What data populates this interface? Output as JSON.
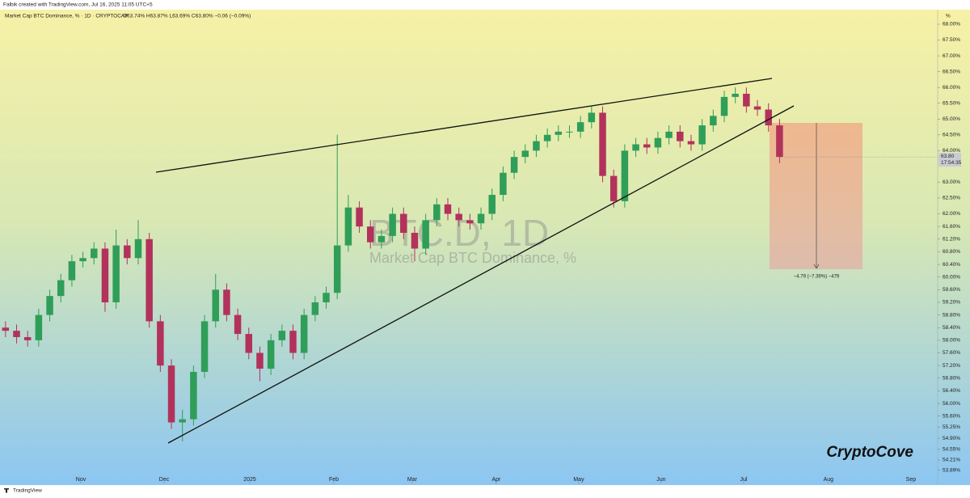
{
  "chart_data": {
    "type": "candlestick",
    "attribution": "Falbik created with TradingView.com, Jul 16, 2025 11:05 UTC+5",
    "title": "Market Cap BTC Dominance, % · 1D · CRYPTOCAP",
    "legend_values": "O63.74% H63.87% L63.69% C63.80% −0.06 (−0.09%)",
    "watermark": "BTC.D, 1D",
    "watermark_subtitle": "Market Cap BTC Dominance, %",
    "brand": "CryptoCove",
    "footer": "TradingView",
    "axis_unit": "%",
    "measure_label": "−4.79 (−7.39%) −479",
    "last_price_label": "63.80",
    "countdown": "17:54:35",
    "up_color": "#2f9e58",
    "down_color": "#b2325c",
    "open": [
      58.4,
      58.3,
      58.1,
      58.0,
      58.8,
      59.4,
      59.9,
      60.5,
      60.6,
      60.9,
      59.2,
      61.0,
      60.6,
      61.2,
      58.6,
      57.2,
      55.4,
      55.5,
      57.0,
      58.6,
      59.6,
      58.8,
      58.2,
      57.6,
      57.1,
      58.0,
      58.3,
      57.6,
      58.8,
      59.2,
      59.5,
      61.0,
      62.2,
      61.6,
      61.1,
      61.3,
      62.0,
      61.4,
      60.9,
      61.8,
      62.3,
      62.0,
      61.8,
      61.7,
      62.0,
      62.6,
      63.3,
      63.8,
      64.0,
      64.3,
      64.5,
      64.6,
      64.6,
      64.9,
      65.2,
      63.2,
      62.4,
      64.0,
      64.2,
      64.1,
      64.4,
      64.6,
      64.3,
      64.2,
      64.8,
      65.1,
      65.7,
      65.8,
      65.4,
      65.3,
      64.8
    ],
    "high": [
      58.6,
      58.5,
      58.3,
      59.0,
      59.6,
      60.1,
      60.7,
      60.8,
      61.1,
      61.1,
      61.5,
      61.2,
      61.8,
      61.4,
      58.8,
      57.4,
      55.8,
      57.2,
      58.8,
      60.1,
      59.8,
      59.0,
      58.4,
      57.8,
      58.2,
      58.5,
      58.5,
      59.0,
      59.4,
      59.7,
      64.5,
      62.6,
      62.4,
      61.8,
      61.5,
      62.2,
      62.2,
      61.6,
      62.0,
      62.5,
      62.5,
      62.2,
      62.0,
      62.2,
      62.8,
      63.5,
      64.0,
      64.2,
      64.5,
      64.7,
      64.8,
      64.8,
      65.1,
      65.4,
      65.4,
      63.4,
      64.2,
      64.4,
      64.4,
      64.6,
      64.8,
      64.8,
      64.5,
      65.0,
      65.3,
      65.9,
      66.0,
      66.0,
      65.6,
      65.5,
      65.0
    ],
    "low": [
      58.1,
      57.9,
      57.8,
      57.8,
      58.6,
      59.2,
      59.7,
      60.3,
      60.4,
      58.9,
      59.0,
      60.4,
      60.4,
      58.4,
      57.0,
      55.2,
      54.8,
      55.3,
      56.8,
      58.4,
      58.6,
      58.0,
      57.4,
      56.7,
      56.9,
      57.8,
      57.4,
      57.4,
      58.6,
      59.0,
      59.3,
      60.8,
      61.4,
      60.9,
      60.9,
      61.1,
      61.2,
      60.5,
      60.7,
      61.6,
      61.8,
      61.6,
      61.5,
      61.5,
      61.8,
      62.4,
      63.1,
      63.6,
      63.8,
      64.1,
      64.3,
      64.4,
      64.4,
      64.7,
      63.0,
      62.2,
      62.2,
      63.8,
      63.9,
      63.9,
      64.2,
      64.1,
      64.0,
      64.0,
      64.6,
      64.9,
      65.5,
      65.2,
      65.1,
      64.6,
      63.6
    ],
    "close": [
      58.3,
      58.1,
      58.0,
      58.8,
      59.4,
      59.9,
      60.5,
      60.6,
      60.9,
      59.2,
      61.0,
      60.6,
      61.2,
      58.6,
      57.2,
      55.4,
      55.5,
      57.0,
      58.6,
      59.6,
      58.8,
      58.2,
      57.6,
      57.1,
      58.0,
      58.3,
      57.6,
      58.8,
      59.2,
      59.5,
      61.0,
      62.2,
      61.6,
      61.1,
      61.3,
      62.0,
      61.4,
      60.9,
      61.8,
      62.3,
      62.0,
      61.8,
      61.7,
      62.0,
      62.6,
      63.3,
      63.8,
      64.0,
      64.3,
      64.5,
      64.6,
      64.6,
      64.9,
      65.2,
      63.2,
      62.4,
      64.0,
      64.2,
      64.1,
      64.4,
      64.6,
      64.3,
      64.2,
      64.8,
      65.1,
      65.7,
      65.8,
      65.4,
      65.3,
      64.8,
      63.8
    ],
    "xlim": [
      -0.5,
      84.3
    ],
    "xticks": [
      {
        "value": 6.81,
        "label": "Nov"
      },
      {
        "value": 14.34,
        "label": "Dec"
      },
      {
        "value": 22.09,
        "label": "2025"
      },
      {
        "value": 29.69,
        "label": "Feb"
      },
      {
        "value": 36.78,
        "label": "Mar"
      },
      {
        "value": 44.38,
        "label": "Apr"
      },
      {
        "value": 51.84,
        "label": "May"
      },
      {
        "value": 59.29,
        "label": "Jun"
      },
      {
        "value": 66.75,
        "label": "Jul"
      },
      {
        "value": 74.42,
        "label": "Aug"
      },
      {
        "value": 81.88,
        "label": "Sep"
      }
    ],
    "ylim": [
      53.52,
      68.46
    ],
    "yticks": [
      {
        "value": 68,
        "label": "68.00%"
      },
      {
        "value": 67.5,
        "label": "67.50%"
      },
      {
        "value": 67,
        "label": "67.00%"
      },
      {
        "value": 66.5,
        "label": "66.50%"
      },
      {
        "value": 66,
        "label": "66.00%"
      },
      {
        "value": 65.5,
        "label": "65.50%"
      },
      {
        "value": 65,
        "label": "65.00%"
      },
      {
        "value": 64.5,
        "label": "64.50%"
      },
      {
        "value": 64,
        "label": "64.00%"
      },
      {
        "value": 63,
        "label": "63.00%"
      },
      {
        "value": 62.5,
        "label": "62.50%"
      },
      {
        "value": 62,
        "label": "62.00%"
      },
      {
        "value": 61.6,
        "label": "61.60%"
      },
      {
        "value": 61.2,
        "label": "61.20%"
      },
      {
        "value": 60.8,
        "label": "60.80%"
      },
      {
        "value": 60.4,
        "label": "60.40%"
      },
      {
        "value": 60,
        "label": "60.00%"
      },
      {
        "value": 59.6,
        "label": "59.60%"
      },
      {
        "value": 59.2,
        "label": "59.20%"
      },
      {
        "value": 58.8,
        "label": "58.80%"
      },
      {
        "value": 58.4,
        "label": "58.40%"
      },
      {
        "value": 58,
        "label": "58.00%"
      },
      {
        "value": 57.6,
        "label": "57.60%"
      },
      {
        "value": 57.2,
        "label": "57.20%"
      },
      {
        "value": 56.8,
        "label": "56.80%"
      },
      {
        "value": 56.4,
        "label": "56.40%"
      },
      {
        "value": 56,
        "label": "56.00%"
      },
      {
        "value": 55.6,
        "label": "55.60%"
      },
      {
        "value": 55.25,
        "label": "55.25%"
      },
      {
        "value": 54.9,
        "label": "54.90%"
      },
      {
        "value": 54.55,
        "label": "54.55%"
      },
      {
        "value": 54.21,
        "label": "54.21%"
      },
      {
        "value": 53.89,
        "label": "53.89%"
      }
    ],
    "grid": false
  }
}
